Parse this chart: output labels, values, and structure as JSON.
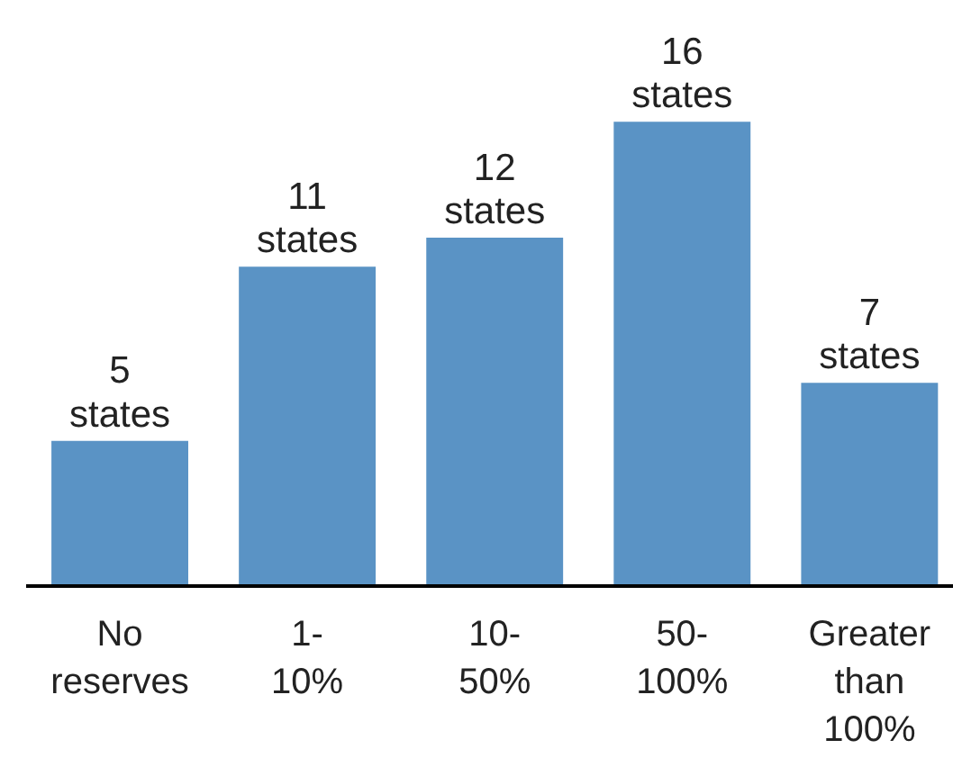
{
  "chart_data": {
    "type": "bar",
    "categories": [
      "No reserves",
      "1-10%",
      "10-50%",
      "50-100%",
      "Greater than 100%"
    ],
    "values": [
      5,
      11,
      12,
      16,
      7
    ],
    "value_labels": [
      "5 states",
      "11 states",
      "12 states",
      "16 states",
      "7 states"
    ],
    "color": "#5a93c5",
    "grid": false
  }
}
